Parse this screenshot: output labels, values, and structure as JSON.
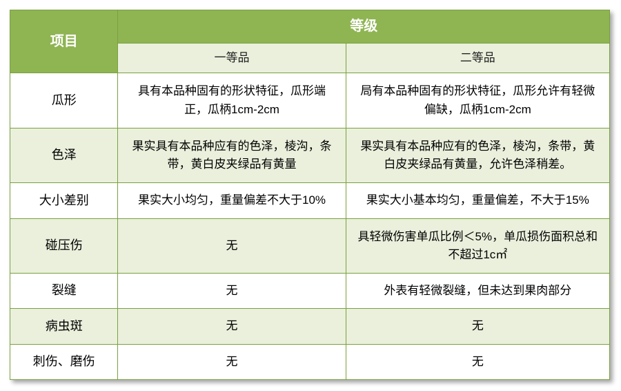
{
  "colors": {
    "header_bg": "#8fb452",
    "header_text": "#ffffff",
    "sub_header_bg": "#eaf0dc",
    "row_alt_bg": "#eaf0dc",
    "row_bg": "#ffffff",
    "border": "#7aa03f",
    "text": "#232323"
  },
  "fonts": {
    "header_size": "20px",
    "sub_header_size": "17px",
    "label_size": "18px",
    "cell_size": "17px"
  },
  "header": {
    "project": "项目",
    "grade": "等级",
    "grade1": "一等品",
    "grade2": "二等品"
  },
  "rows": [
    {
      "label": "瓜形",
      "g1": "具有本品种固有的形状特征，瓜形端正，瓜柄1cm-2cm",
      "g2": "局有本品种固有的形状特征，瓜形允许有轻微偏缺，瓜柄1cm-2cm"
    },
    {
      "label": "色泽",
      "g1": "果实具有本品种应有的色泽，棱沟，条带，黄白皮夹绿品有黄量",
      "g2": "果实具有本品种应有的色泽，棱沟，条带，黄白皮夹绿品有黄量，允许色泽稍差。"
    },
    {
      "label": "大小差别",
      "g1": "果实大小均匀，重量偏差不大于10%",
      "g2": "果实大小基本均匀，重量偏差，不大于15%"
    },
    {
      "label": "碰压伤",
      "g1": "无",
      "g2": "具轻微伤害单瓜比例＜5%，单瓜损伤面积总和不超过1c㎡"
    },
    {
      "label": "裂缝",
      "g1": "无",
      "g2": "外表有轻微裂缝，但未达到果肉部分"
    },
    {
      "label": "病虫斑",
      "g1": "无",
      "g2": "无"
    },
    {
      "label": "刺伤、磨伤",
      "g1": "无",
      "g2": "无"
    }
  ]
}
